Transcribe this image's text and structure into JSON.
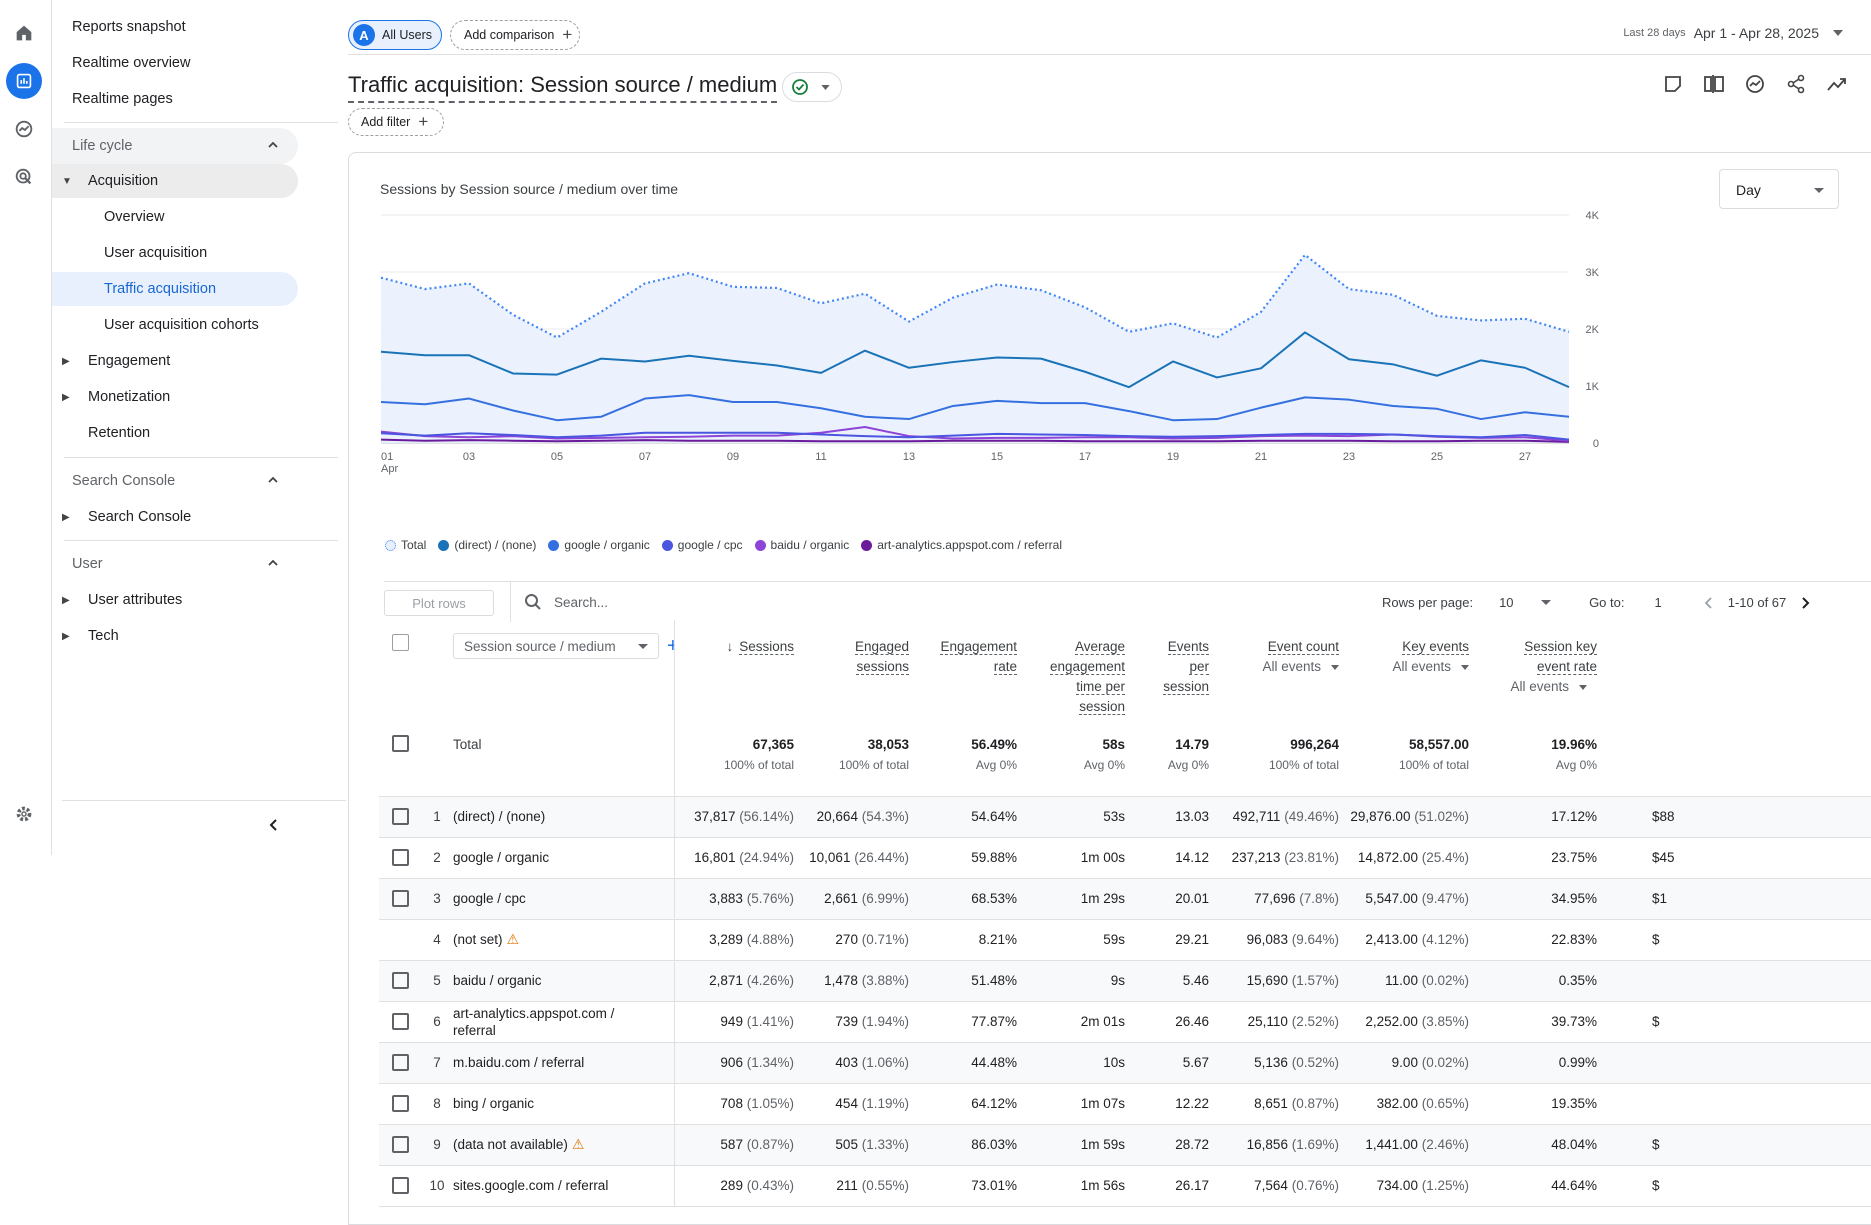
{
  "rail": [
    "home-icon",
    "reports-icon",
    "explore-icon",
    "advertising-icon",
    "settings-icon"
  ],
  "nav": {
    "top": [
      "Reports snapshot",
      "Realtime overview",
      "Realtime pages"
    ],
    "lifecycle": "Life cycle",
    "acquisition": "Acquisition",
    "acq_items": [
      "Overview",
      "User acquisition",
      "Traffic acquisition",
      "User acquisition cohorts"
    ],
    "engagement": "Engagement",
    "monetization": "Monetization",
    "retention": "Retention",
    "search_console_section": "Search Console",
    "search_console_item": "Search Console",
    "user_section": "User",
    "user_attributes": "User attributes",
    "tech": "Tech"
  },
  "header": {
    "segment_initial": "A",
    "segment": "All Users",
    "add_comparison": "Add comparison",
    "date_label": "Last 28 days",
    "date_value": "Apr 1 - Apr 28, 2025",
    "title": "Traffic acquisition: Session source / medium",
    "add_filter": "Add filter"
  },
  "chart": {
    "title": "Sessions by Session source / medium over time",
    "granularity": "Day",
    "x_month": "Apr"
  },
  "chart_data": {
    "type": "line",
    "x": [
      "01",
      "02",
      "03",
      "04",
      "05",
      "06",
      "07",
      "08",
      "09",
      "10",
      "11",
      "12",
      "13",
      "14",
      "15",
      "16",
      "17",
      "18",
      "19",
      "20",
      "21",
      "22",
      "23",
      "24",
      "25",
      "26",
      "27",
      "28"
    ],
    "x_tick_labels": [
      "01",
      "03",
      "05",
      "07",
      "09",
      "11",
      "13",
      "15",
      "17",
      "19",
      "21",
      "23",
      "25",
      "27"
    ],
    "y_ticks": [
      "0",
      "1K",
      "2K",
      "3K",
      "4K"
    ],
    "ylim": [
      0,
      4000
    ],
    "series": [
      {
        "name": "Total",
        "color": "#4285f4",
        "style": "dotted",
        "values": [
          2900,
          2700,
          2800,
          2250,
          1850,
          2300,
          2800,
          2980,
          2740,
          2720,
          2450,
          2620,
          2130,
          2550,
          2780,
          2680,
          2380,
          1950,
          2100,
          1850,
          2300,
          3300,
          2700,
          2600,
          2230,
          2150,
          2180,
          1950
        ]
      },
      {
        "name": "(direct) / (none)",
        "color": "#1a73b6",
        "values": [
          1600,
          1540,
          1540,
          1220,
          1200,
          1480,
          1430,
          1530,
          1440,
          1360,
          1230,
          1620,
          1320,
          1420,
          1500,
          1480,
          1250,
          980,
          1430,
          1150,
          1310,
          1940,
          1470,
          1380,
          1180,
          1450,
          1320,
          980
        ]
      },
      {
        "name": "google / organic",
        "color": "#3670e0",
        "values": [
          720,
          680,
          780,
          570,
          400,
          460,
          780,
          840,
          720,
          720,
          610,
          460,
          420,
          650,
          740,
          700,
          700,
          560,
          400,
          420,
          620,
          800,
          760,
          650,
          600,
          420,
          540,
          460
        ]
      },
      {
        "name": "google / cpc",
        "color": "#4a55e0",
        "values": [
          170,
          130,
          170,
          140,
          100,
          130,
          180,
          180,
          180,
          180,
          150,
          120,
          100,
          130,
          160,
          150,
          140,
          120,
          110,
          120,
          140,
          160,
          160,
          150,
          120,
          100,
          140,
          60
        ]
      },
      {
        "name": "baidu / organic",
        "color": "#8e44d6",
        "values": [
          200,
          120,
          100,
          120,
          80,
          90,
          100,
          110,
          130,
          130,
          180,
          280,
          120,
          80,
          90,
          90,
          100,
          100,
          80,
          90,
          120,
          130,
          120,
          150,
          110,
          90,
          100,
          40
        ]
      },
      {
        "name": "art-analytics.appspot.com / referral",
        "color": "#6a1b9a",
        "values": [
          60,
          40,
          50,
          40,
          30,
          40,
          50,
          40,
          40,
          40,
          30,
          30,
          30,
          40,
          40,
          40,
          30,
          30,
          30,
          30,
          40,
          40,
          40,
          30,
          30,
          40,
          40,
          20
        ]
      }
    ]
  },
  "toolbar": {
    "plot_rows": "Plot rows",
    "search_placeholder": "Search...",
    "rows_per_page_label": "Rows per page:",
    "rows_per_page": "10",
    "goto_label": "Go to:",
    "goto_value": "1",
    "range": "1-10 of 67"
  },
  "table": {
    "dimension": "Session source / medium",
    "headers": {
      "sessions": "Sessions",
      "engaged_1": "Engaged",
      "engaged_2": "sessions",
      "eng_rate_1": "Engagement",
      "eng_rate_2": "rate",
      "avg_1": "Average",
      "avg_2": "engagement",
      "avg_3": "time per",
      "avg_4": "session",
      "ev_per_1": "Events",
      "ev_per_2": "per",
      "ev_per_3": "session",
      "event_count": "Event count",
      "event_count_sub": "All events",
      "key_events": "Key events",
      "key_events_sub": "All events",
      "skr_1": "Session key",
      "skr_2": "event rate",
      "skr_sub": "All events"
    },
    "total": {
      "label": "Total",
      "sessions": "67,365",
      "sessions_sub": "100% of total",
      "engaged": "38,053",
      "engaged_sub": "100% of total",
      "eng_rate": "56.49%",
      "eng_rate_sub": "Avg 0%",
      "avg_time": "58s",
      "avg_time_sub": "Avg 0%",
      "ev_per": "14.79",
      "ev_per_sub": "Avg 0%",
      "event_count": "996,264",
      "event_count_sub": "100% of total",
      "key_events": "58,557.00",
      "key_events_sub": "100% of total",
      "skr": "19.96%",
      "skr_sub": "Avg 0%"
    },
    "rows": [
      {
        "n": "1",
        "dim": "(direct) / (none)",
        "dim2": "",
        "warn": "",
        "s": "37,817",
        "sp": "(56.14%)",
        "e": "20,664",
        "ep": "(54.3%)",
        "er": "54.64%",
        "at": "53s",
        "eps": "13.03",
        "ec": "492,711",
        "ecp": "(49.46%)",
        "ke": "29,876.00",
        "kep": "(51.02%)",
        "skr": "17.12%",
        "rev": "$88",
        "cb": true
      },
      {
        "n": "2",
        "dim": "google / organic",
        "dim2": "",
        "warn": "",
        "s": "16,801",
        "sp": "(24.94%)",
        "e": "10,061",
        "ep": "(26.44%)",
        "er": "59.88%",
        "at": "1m 00s",
        "eps": "14.12",
        "ec": "237,213",
        "ecp": "(23.81%)",
        "ke": "14,872.00",
        "kep": "(25.4%)",
        "skr": "23.75%",
        "rev": "$45",
        "cb": true
      },
      {
        "n": "3",
        "dim": "google / cpc",
        "dim2": "",
        "warn": "",
        "s": "3,883",
        "sp": "(5.76%)",
        "e": "2,661",
        "ep": "(6.99%)",
        "er": "68.53%",
        "at": "1m 29s",
        "eps": "20.01",
        "ec": "77,696",
        "ecp": "(7.8%)",
        "ke": "5,547.00",
        "kep": "(9.47%)",
        "skr": "34.95%",
        "rev": "$1",
        "cb": true
      },
      {
        "n": "4",
        "dim": "(not set)",
        "dim2": "",
        "warn": "⚠",
        "s": "3,289",
        "sp": "(4.88%)",
        "e": "270",
        "ep": "(0.71%)",
        "er": "8.21%",
        "at": "59s",
        "eps": "29.21",
        "ec": "96,083",
        "ecp": "(9.64%)",
        "ke": "2,413.00",
        "kep": "(4.12%)",
        "skr": "22.83%",
        "rev": "$",
        "cb": false
      },
      {
        "n": "5",
        "dim": "baidu / organic",
        "dim2": "",
        "warn": "",
        "s": "2,871",
        "sp": "(4.26%)",
        "e": "1,478",
        "ep": "(3.88%)",
        "er": "51.48%",
        "at": "9s",
        "eps": "5.46",
        "ec": "15,690",
        "ecp": "(1.57%)",
        "ke": "11.00",
        "kep": "(0.02%)",
        "skr": "0.35%",
        "rev": "",
        "cb": true
      },
      {
        "n": "6",
        "dim": "art-analytics.appspot.com /",
        "dim2": "referral",
        "warn": "",
        "s": "949",
        "sp": "(1.41%)",
        "e": "739",
        "ep": "(1.94%)",
        "er": "77.87%",
        "at": "2m 01s",
        "eps": "26.46",
        "ec": "25,110",
        "ecp": "(2.52%)",
        "ke": "2,252.00",
        "kep": "(3.85%)",
        "skr": "39.73%",
        "rev": "$",
        "cb": true
      },
      {
        "n": "7",
        "dim": "m.baidu.com / referral",
        "dim2": "",
        "warn": "",
        "s": "906",
        "sp": "(1.34%)",
        "e": "403",
        "ep": "(1.06%)",
        "er": "44.48%",
        "at": "10s",
        "eps": "5.67",
        "ec": "5,136",
        "ecp": "(0.52%)",
        "ke": "9.00",
        "kep": "(0.02%)",
        "skr": "0.99%",
        "rev": "",
        "cb": true
      },
      {
        "n": "8",
        "dim": "bing / organic",
        "dim2": "",
        "warn": "",
        "s": "708",
        "sp": "(1.05%)",
        "e": "454",
        "ep": "(1.19%)",
        "er": "64.12%",
        "at": "1m 07s",
        "eps": "12.22",
        "ec": "8,651",
        "ecp": "(0.87%)",
        "ke": "382.00",
        "kep": "(0.65%)",
        "skr": "19.35%",
        "rev": "",
        "cb": true
      },
      {
        "n": "9",
        "dim": "(data not available)",
        "dim2": "",
        "warn": "⚠",
        "s": "587",
        "sp": "(0.87%)",
        "e": "505",
        "ep": "(1.33%)",
        "er": "86.03%",
        "at": "1m 59s",
        "eps": "28.72",
        "ec": "16,856",
        "ecp": "(1.69%)",
        "ke": "1,441.00",
        "kep": "(2.46%)",
        "skr": "48.04%",
        "rev": "$",
        "cb": true
      },
      {
        "n": "10",
        "dim": "sites.google.com / referral",
        "dim2": "",
        "warn": "",
        "s": "289",
        "sp": "(0.43%)",
        "e": "211",
        "ep": "(0.55%)",
        "er": "73.01%",
        "at": "1m 56s",
        "eps": "26.17",
        "ec": "7,564",
        "ecp": "(0.76%)",
        "ke": "734.00",
        "kep": "(1.25%)",
        "skr": "44.64%",
        "rev": "$",
        "cb": true
      }
    ]
  },
  "colors": {
    "accent": "#1a73e8",
    "selected_bg": "#e8f0fe",
    "warning": "#e37400"
  }
}
